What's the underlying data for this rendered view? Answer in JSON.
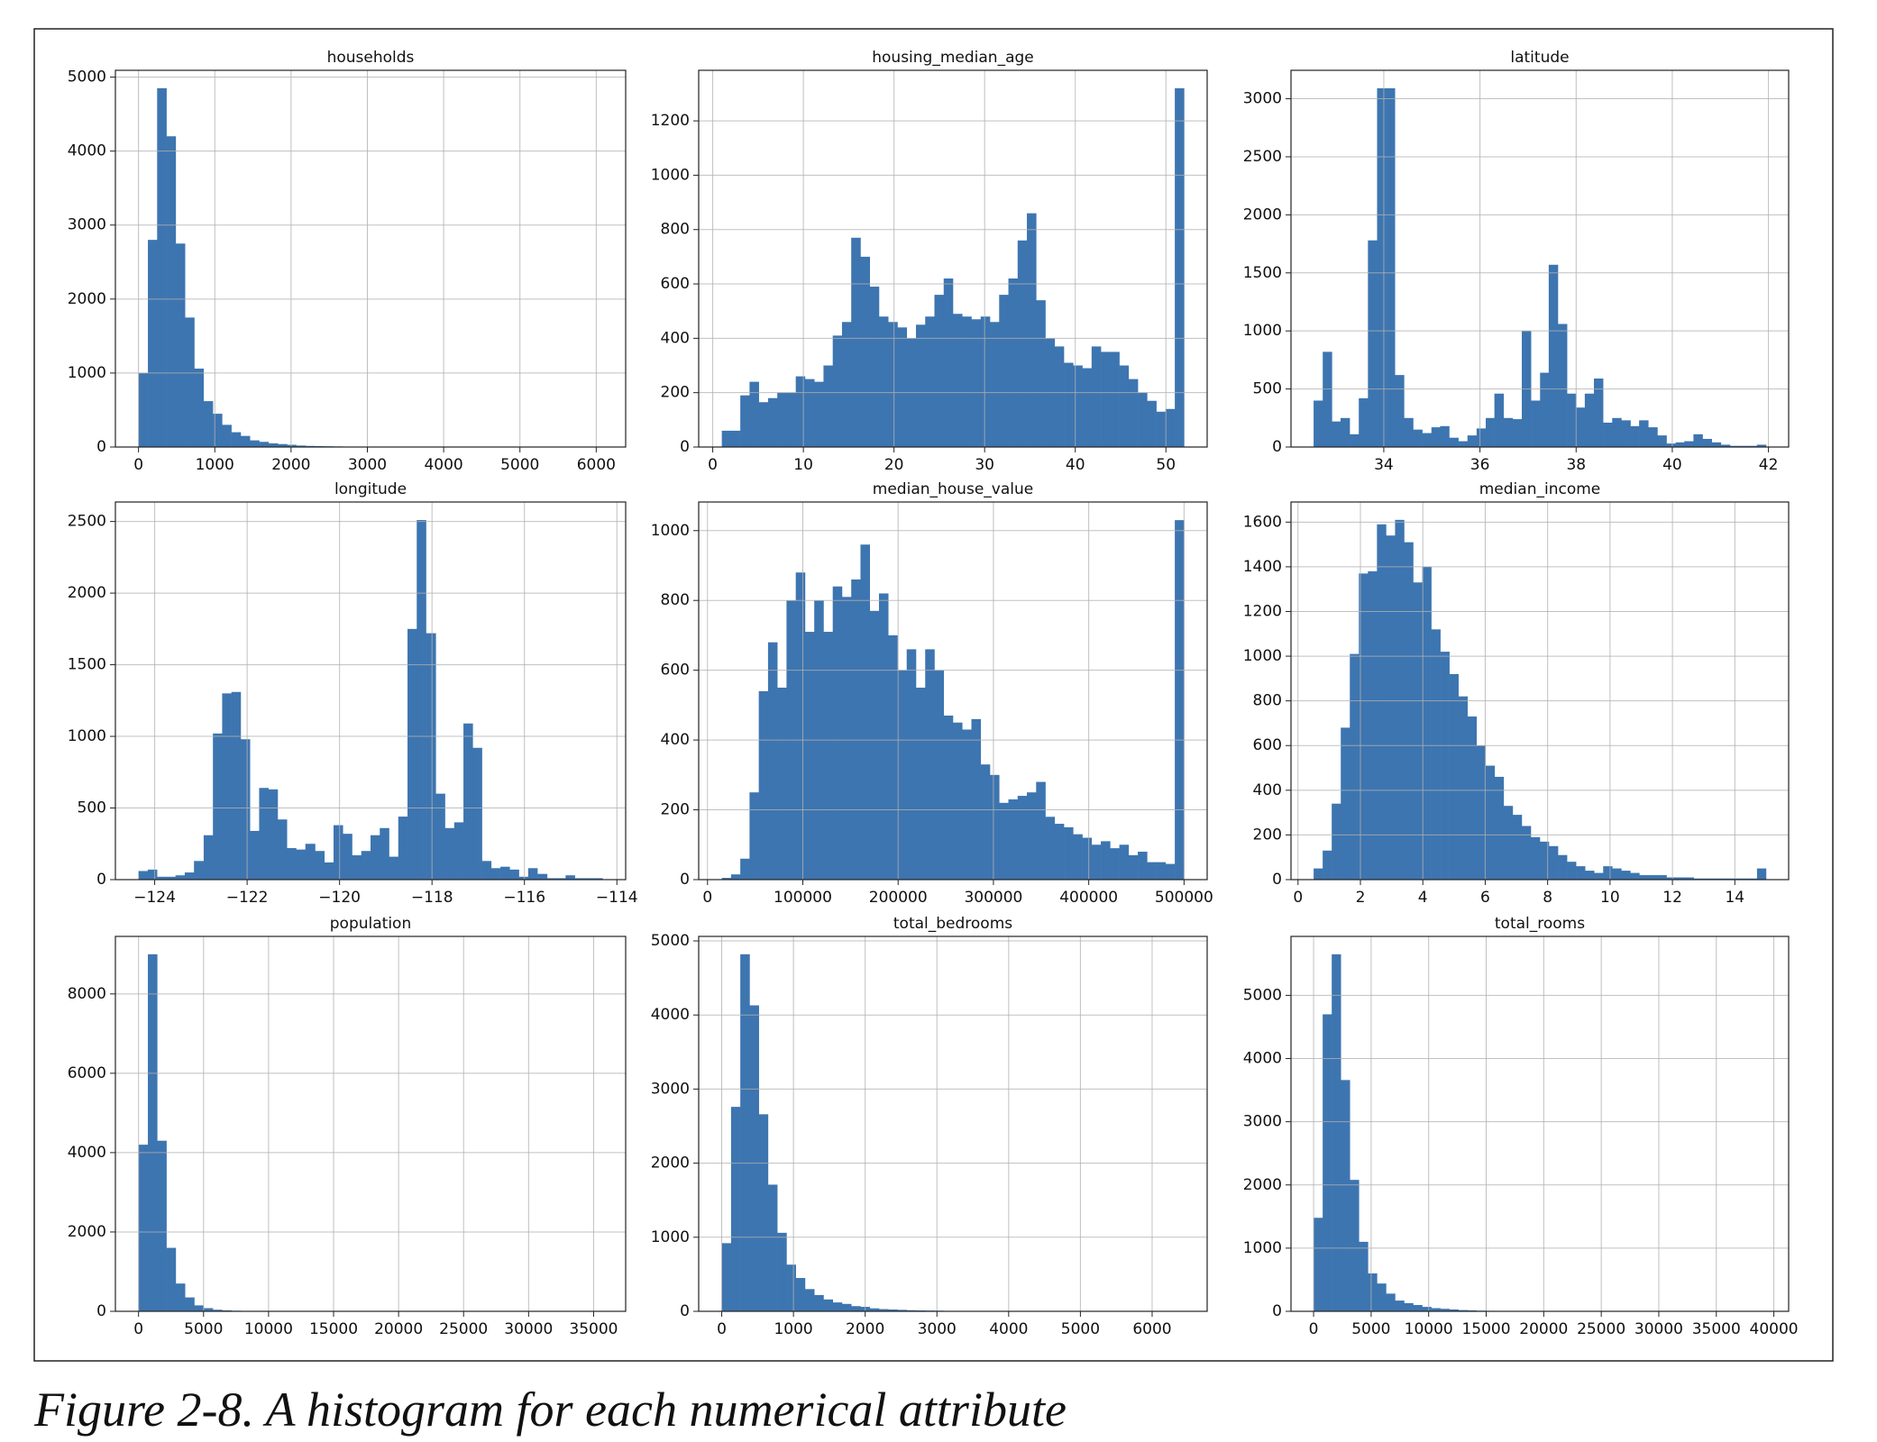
{
  "chart_data": [
    {
      "type": "histogram",
      "title": "households",
      "color": "#3d75b0",
      "grid": true,
      "bins": [
        1,
        123,
        244,
        366,
        487,
        609,
        731,
        852,
        974,
        1095,
        1217,
        1339,
        1460,
        1582,
        1703,
        1825,
        1947,
        2068,
        2190,
        2311,
        2433,
        2555,
        2676,
        2798,
        2919,
        3041,
        3163,
        3284,
        3406,
        3527,
        3649,
        3771,
        3892,
        4014,
        4135,
        4257,
        4379,
        4500,
        4622,
        4743,
        4865,
        4987,
        5108,
        5230,
        5351,
        5473,
        5595,
        5716,
        5838,
        5959,
        6082
      ],
      "values": [
        1000,
        2800,
        4850,
        4200,
        2750,
        1750,
        1060,
        620,
        450,
        300,
        200,
        150,
        90,
        70,
        50,
        40,
        30,
        20,
        15,
        12,
        10,
        8,
        6,
        5,
        4,
        3,
        3,
        2,
        2,
        2,
        1,
        1,
        1,
        1,
        1,
        1,
        0,
        1,
        0,
        0,
        0,
        1,
        0,
        0,
        0,
        0,
        0,
        0,
        0,
        1
      ],
      "xlim": [
        -303,
        6386
      ],
      "xticks": [
        0,
        1000,
        2000,
        3000,
        4000,
        5000,
        6000
      ],
      "ylim": [
        0,
        5092
      ],
      "yticks": [
        0,
        1000,
        2000,
        3000,
        4000,
        5000
      ]
    },
    {
      "type": "histogram",
      "title": "housing_median_age",
      "color": "#3d75b0",
      "grid": true,
      "bins": [
        1,
        2.02,
        3.04,
        4.06,
        5.08,
        6.1,
        7.12,
        8.14,
        9.16,
        10.18,
        11.2,
        12.22,
        13.24,
        14.26,
        15.28,
        16.3,
        17.32,
        18.34,
        19.36,
        20.38,
        21.4,
        22.42,
        23.44,
        24.46,
        25.48,
        26.5,
        27.52,
        28.54,
        29.56,
        30.58,
        31.6,
        32.62,
        33.64,
        34.66,
        35.68,
        36.7,
        37.72,
        38.74,
        39.76,
        40.78,
        41.8,
        42.82,
        43.84,
        44.86,
        45.88,
        46.9,
        47.92,
        48.94,
        49.96,
        50.98,
        52
      ],
      "values": [
        60,
        60,
        190,
        240,
        165,
        180,
        200,
        200,
        260,
        250,
        240,
        300,
        410,
        460,
        770,
        700,
        590,
        480,
        460,
        440,
        400,
        450,
        480,
        560,
        620,
        490,
        480,
        470,
        480,
        460,
        560,
        620,
        760,
        860,
        540,
        400,
        370,
        310,
        300,
        290,
        370,
        350,
        350,
        300,
        250,
        200,
        170,
        130,
        140,
        1320
      ],
      "xlim": [
        -1.55,
        54.55
      ],
      "xticks": [
        0,
        10,
        20,
        30,
        40,
        50
      ],
      "ylim": [
        0,
        1386
      ],
      "yticks": [
        0,
        200,
        400,
        600,
        800,
        1000,
        1200
      ]
    },
    {
      "type": "histogram",
      "title": "latitude",
      "color": "#3d75b0",
      "grid": true,
      "bins": [
        32.54,
        32.73,
        32.92,
        33.1,
        33.29,
        33.48,
        33.67,
        33.86,
        34.05,
        34.23,
        34.42,
        34.61,
        34.8,
        34.99,
        35.17,
        35.36,
        35.55,
        35.74,
        35.93,
        36.12,
        36.3,
        36.49,
        36.68,
        36.87,
        37.06,
        37.25,
        37.43,
        37.62,
        37.81,
        38,
        38.18,
        38.37,
        38.56,
        38.75,
        38.94,
        39.13,
        39.31,
        39.5,
        39.69,
        39.88,
        40.07,
        40.25,
        40.44,
        40.63,
        40.82,
        41.01,
        41.2,
        41.38,
        41.57,
        41.76,
        41.95
      ],
      "values": [
        400,
        820,
        220,
        250,
        110,
        420,
        1780,
        3090,
        3090,
        620,
        250,
        150,
        120,
        170,
        180,
        80,
        50,
        100,
        160,
        250,
        460,
        250,
        240,
        1000,
        400,
        640,
        1570,
        1060,
        460,
        340,
        460,
        590,
        210,
        250,
        230,
        180,
        230,
        170,
        100,
        30,
        40,
        50,
        110,
        70,
        40,
        20,
        10,
        10,
        10,
        20
      ],
      "xlim": [
        32.07,
        42.42
      ],
      "xticks": [
        34,
        36,
        38,
        40,
        42
      ],
      "ylim": [
        0,
        3245
      ],
      "yticks": [
        0,
        500,
        1000,
        1500,
        2000,
        2500,
        3000
      ]
    },
    {
      "type": "histogram",
      "title": "longitude",
      "color": "#3d75b0",
      "grid": true,
      "bins": [
        -124.35,
        -124.15,
        -123.95,
        -123.75,
        -123.55,
        -123.35,
        -123.15,
        -122.94,
        -122.74,
        -122.54,
        -122.34,
        -122.14,
        -121.94,
        -121.74,
        -121.54,
        -121.34,
        -121.14,
        -120.94,
        -120.74,
        -120.53,
        -120.33,
        -120.13,
        -119.93,
        -119.73,
        -119.53,
        -119.33,
        -119.13,
        -118.93,
        -118.73,
        -118.53,
        -118.33,
        -118.13,
        -117.92,
        -117.72,
        -117.52,
        -117.32,
        -117.12,
        -116.92,
        -116.72,
        -116.52,
        -116.32,
        -116.12,
        -115.92,
        -115.72,
        -115.51,
        -115.31,
        -115.11,
        -114.91,
        -114.71,
        -114.51,
        -114.31
      ],
      "values": [
        60,
        70,
        20,
        20,
        30,
        50,
        130,
        310,
        1020,
        1300,
        1310,
        980,
        340,
        640,
        630,
        420,
        220,
        210,
        250,
        200,
        120,
        380,
        320,
        170,
        200,
        310,
        360,
        160,
        440,
        1750,
        2510,
        1720,
        600,
        360,
        400,
        1090,
        920,
        130,
        80,
        90,
        70,
        20,
        80,
        40,
        10,
        10,
        30,
        10,
        10,
        10
      ],
      "xlim": [
        -124.85,
        -113.81
      ],
      "xticks": [
        {
          "value": -124,
          "label": "−124"
        },
        {
          "value": -122,
          "label": "−122"
        },
        {
          "value": -120,
          "label": "−120"
        },
        {
          "value": -118,
          "label": "−118"
        },
        {
          "value": -116,
          "label": "−116"
        },
        {
          "value": -114,
          "label": "−114"
        }
      ],
      "ylim": [
        0,
        2636
      ],
      "yticks": [
        0,
        500,
        1000,
        1500,
        2000,
        2500
      ]
    },
    {
      "type": "histogram",
      "title": "median_house_value",
      "color": "#3d75b0",
      "grid": true,
      "bins": [
        14999,
        24699,
        34399,
        44099,
        53799,
        63499,
        73199,
        82899,
        92599,
        102299,
        111999,
        121699,
        131399,
        141099,
        150799,
        160499,
        170199,
        179899,
        189599,
        199299,
        208999,
        218699,
        228399,
        238099,
        247799,
        257499,
        267199,
        276899,
        286599,
        296299,
        305999,
        315699,
        325399,
        335099,
        344799,
        354499,
        364199,
        373899,
        383599,
        393299,
        402999,
        412699,
        422399,
        432099,
        441799,
        451499,
        461199,
        470899,
        480599,
        490299,
        500001
      ],
      "values": [
        5,
        15,
        60,
        250,
        540,
        680,
        550,
        800,
        880,
        710,
        800,
        710,
        840,
        810,
        860,
        960,
        770,
        820,
        700,
        600,
        660,
        550,
        660,
        600,
        470,
        450,
        430,
        460,
        330,
        300,
        220,
        230,
        240,
        250,
        280,
        180,
        160,
        150,
        130,
        120,
        100,
        110,
        90,
        100,
        70,
        80,
        50,
        50,
        45,
        1030
      ],
      "xlim": [
        -9251,
        524251
      ],
      "xticks": [
        0,
        100000,
        200000,
        300000,
        400000,
        500000
      ],
      "ylim": [
        0,
        1082
      ],
      "yticks": [
        0,
        200,
        400,
        600,
        800,
        1000
      ]
    },
    {
      "type": "histogram",
      "title": "median_income",
      "color": "#3d75b0",
      "grid": true,
      "bins": [
        0.5,
        0.79,
        1.08,
        1.37,
        1.66,
        1.95,
        2.24,
        2.53,
        2.82,
        3.11,
        3.4,
        3.69,
        3.98,
        4.27,
        4.56,
        4.85,
        5.14,
        5.43,
        5.72,
        6.01,
        6.3,
        6.59,
        6.88,
        7.17,
        7.46,
        7.75,
        8.04,
        8.33,
        8.62,
        8.91,
        9.2,
        9.49,
        9.78,
        10.07,
        10.36,
        10.65,
        10.94,
        11.23,
        11.52,
        11.81,
        12.1,
        12.39,
        12.68,
        12.97,
        13.26,
        13.55,
        13.84,
        14.13,
        14.42,
        14.71,
        15
      ],
      "values": [
        50,
        130,
        340,
        680,
        1010,
        1370,
        1380,
        1590,
        1540,
        1610,
        1510,
        1330,
        1400,
        1120,
        1020,
        920,
        820,
        730,
        600,
        510,
        460,
        330,
        290,
        240,
        190,
        170,
        150,
        110,
        80,
        60,
        40,
        30,
        60,
        50,
        40,
        30,
        20,
        20,
        20,
        10,
        10,
        10,
        5,
        5,
        5,
        5,
        5,
        5,
        5,
        50
      ],
      "xlim": [
        -0.225,
        15.725
      ],
      "xticks": [
        0,
        2,
        4,
        6,
        8,
        10,
        12,
        14
      ],
      "ylim": [
        0,
        1690
      ],
      "yticks": [
        0,
        200,
        400,
        600,
        800,
        1000,
        1200,
        1400,
        1600
      ]
    },
    {
      "type": "histogram",
      "title": "population",
      "color": "#3d75b0",
      "grid": true,
      "bins": [
        3,
        717,
        1430,
        2144,
        2857,
        3571,
        4285,
        4998,
        5712,
        6425,
        7139,
        7853,
        8566,
        9280,
        9993,
        10707,
        11421,
        12134,
        12848,
        13561,
        14275,
        14989,
        15702,
        16416,
        17129,
        17843,
        18557,
        19270,
        19984,
        20697,
        21411,
        22125,
        22838,
        23552,
        24265,
        24979,
        25693,
        26406,
        27120,
        27833,
        28547,
        29261,
        29974,
        30688,
        31401,
        32115,
        32829,
        33542,
        34256,
        34969,
        35682
      ],
      "values": [
        4200,
        9000,
        4300,
        1600,
        700,
        350,
        150,
        80,
        40,
        25,
        15,
        8,
        5,
        4,
        3,
        2,
        2,
        1,
        1,
        0,
        1,
        0,
        0,
        1,
        0,
        0,
        0,
        0,
        1,
        0,
        0,
        0,
        0,
        0,
        0,
        0,
        0,
        0,
        0,
        0,
        0,
        0,
        0,
        0,
        0,
        0,
        0,
        0,
        0,
        1
      ],
      "xlim": [
        -1781,
        37466
      ],
      "xticks": [
        0,
        5000,
        10000,
        15000,
        20000,
        25000,
        30000,
        35000
      ],
      "ylim": [
        0,
        9450
      ],
      "yticks": [
        0,
        2000,
        4000,
        6000,
        8000
      ]
    },
    {
      "type": "histogram",
      "title": "total_bedrooms",
      "color": "#3d75b0",
      "grid": true,
      "bins": [
        1,
        130,
        259,
        388,
        517,
        645,
        774,
        903,
        1032,
        1161,
        1290,
        1419,
        1548,
        1677,
        1805,
        1934,
        2063,
        2192,
        2321,
        2450,
        2579,
        2708,
        2837,
        2965,
        3094,
        3223,
        3352,
        3481,
        3610,
        3739,
        3868,
        3997,
        4125,
        4254,
        4383,
        4512,
        4641,
        4770,
        4899,
        5028,
        5157,
        5285,
        5414,
        5543,
        5672,
        5801,
        5930,
        6059,
        6188,
        6317,
        6445
      ],
      "values": [
        920,
        2760,
        4820,
        4130,
        2660,
        1710,
        1060,
        630,
        450,
        300,
        220,
        160,
        120,
        100,
        70,
        60,
        40,
        30,
        25,
        20,
        15,
        12,
        10,
        8,
        6,
        5,
        4,
        3,
        2,
        2,
        2,
        2,
        1,
        1,
        1,
        1,
        0,
        1,
        0,
        1,
        0,
        0,
        0,
        0,
        1,
        0,
        0,
        0,
        0,
        1
      ],
      "xlim": [
        -321,
        6767
      ],
      "xticks": [
        0,
        1000,
        2000,
        3000,
        4000,
        5000,
        6000
      ],
      "ylim": [
        0,
        5061
      ],
      "yticks": [
        0,
        1000,
        2000,
        3000,
        4000,
        5000
      ]
    },
    {
      "type": "histogram",
      "title": "total_rooms",
      "color": "#3d75b0",
      "grid": true,
      "bins": [
        2,
        788,
        1575,
        2361,
        3147,
        3934,
        4720,
        5506,
        6293,
        7079,
        7865,
        8652,
        9438,
        10224,
        11011,
        11797,
        12583,
        13370,
        14156,
        14942,
        15729,
        16515,
        17301,
        18088,
        18874,
        19660,
        20447,
        21233,
        22019,
        22806,
        23592,
        24378,
        25165,
        25951,
        26737,
        27524,
        28310,
        29096,
        29883,
        30669,
        31455,
        32242,
        33028,
        33814,
        34601,
        35387,
        36173,
        36960,
        37746,
        38532,
        39320
      ],
      "values": [
        1480,
        4700,
        5650,
        3660,
        2080,
        1100,
        600,
        440,
        280,
        170,
        130,
        100,
        70,
        50,
        40,
        30,
        20,
        15,
        10,
        8,
        6,
        5,
        4,
        3,
        3,
        2,
        2,
        1,
        1,
        1,
        1,
        1,
        0,
        1,
        0,
        0,
        0,
        0,
        0,
        0,
        1,
        0,
        0,
        0,
        0,
        0,
        0,
        0,
        0,
        1
      ],
      "xlim": [
        -1964,
        41286
      ],
      "xticks": [
        0,
        5000,
        10000,
        15000,
        20000,
        25000,
        30000,
        35000,
        40000
      ],
      "ylim": [
        0,
        5933
      ],
      "yticks": [
        0,
        1000,
        2000,
        3000,
        4000,
        5000
      ]
    }
  ],
  "caption": "Figure 2-8. A histogram for each numerical attribute"
}
